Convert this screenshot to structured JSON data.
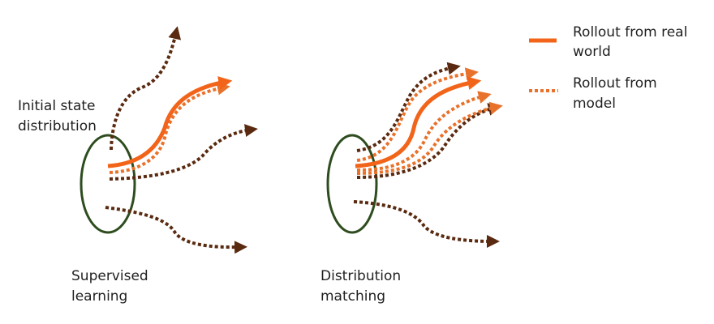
{
  "labels": {
    "initial_state_line1": "Initial state",
    "initial_state_line2": "distribution",
    "left_caption_line1": "Supervised",
    "left_caption_line2": "learning",
    "right_caption_line1": "Distribution",
    "right_caption_line2": "matching"
  },
  "legend": {
    "real_line1": "Rollout from real",
    "real_line2": "world",
    "model_line1": "Rollout from",
    "model_line2": "model"
  },
  "colors": {
    "real": "#f26419",
    "model": "#e8722c",
    "dark": "#5a2a10",
    "ellipse": "#2e4d1f",
    "text": "#1f1f1f"
  }
}
